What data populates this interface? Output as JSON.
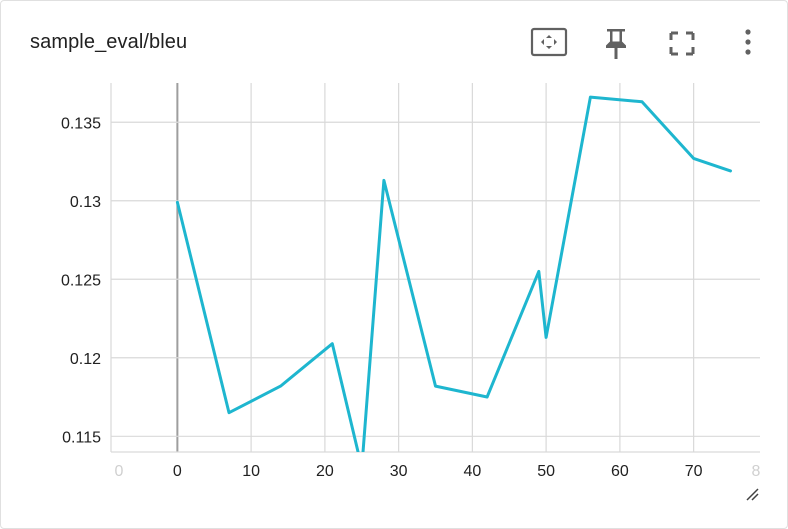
{
  "card": {
    "title": "sample_eval/bleu"
  },
  "toolbar": [
    {
      "name": "fit-domain-button",
      "icon": "fit-to-data-icon"
    },
    {
      "name": "pin-button",
      "icon": "pin-icon"
    },
    {
      "name": "fullscreen-button",
      "icon": "fullscreen-icon"
    },
    {
      "name": "more-options-button",
      "icon": "more-vert-icon"
    }
  ],
  "colors": {
    "series": "#1eb6cf",
    "grid": "#d9d9d9",
    "zero_line": "#9e9e9e",
    "icon": "#616161"
  },
  "chart_data": {
    "type": "line",
    "title": "sample_eval/bleu",
    "xlabel": "",
    "ylabel": "",
    "xlim": [
      -9,
      79
    ],
    "ylim": [
      0.114,
      0.1375
    ],
    "x_ticks": [
      0,
      10,
      20,
      30,
      40,
      50,
      60,
      70
    ],
    "x_tick_labels": [
      "0",
      "10",
      "20",
      "30",
      "40",
      "50",
      "60",
      "70"
    ],
    "x_faded_tick_labels": [
      {
        "x": -9,
        "label": "0"
      },
      {
        "x": 79,
        "label": "8"
      }
    ],
    "y_ticks": [
      0.115,
      0.12,
      0.125,
      0.13,
      0.135
    ],
    "y_tick_labels": [
      "0.115",
      "0.12",
      "0.125",
      "0.13",
      "0.135"
    ],
    "grid": true,
    "series": [
      {
        "x": [
          0,
          7,
          14,
          21,
          25,
          28,
          35,
          42,
          49,
          50,
          56,
          63,
          70,
          75
        ],
        "y": [
          0.1299,
          0.1165,
          0.1182,
          0.1209,
          0.113,
          0.1313,
          0.1182,
          0.1175,
          0.1255,
          0.1213,
          0.1366,
          0.1363,
          0.1327,
          0.1319
        ]
      }
    ]
  }
}
